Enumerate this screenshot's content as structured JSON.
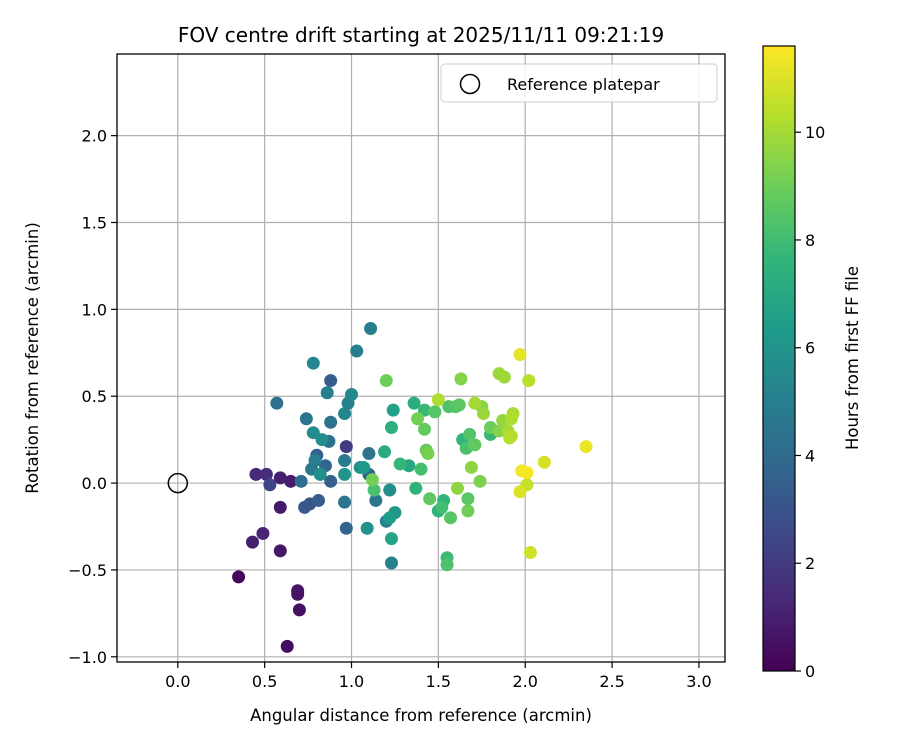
{
  "chart_data": {
    "type": "scatter",
    "title": "FOV centre drift starting at 2025/11/11 09:21:19",
    "xlabel": "Angular distance from reference (arcmin)",
    "ylabel": "Rotation from reference (arcmin)",
    "xlim": [
      -0.35,
      3.15
    ],
    "ylim": [
      -1.03,
      2.47
    ],
    "xticks": [
      0.0,
      0.5,
      1.0,
      1.5,
      2.0,
      2.5,
      3.0
    ],
    "xtick_labels": [
      "0.0",
      "0.5",
      "1.0",
      "1.5",
      "2.0",
      "2.5",
      "3.0"
    ],
    "yticks": [
      -1.0,
      -0.5,
      0.0,
      0.5,
      1.0,
      1.5,
      2.0
    ],
    "ytick_labels": [
      "−1.0",
      "−0.5",
      "0.0",
      "0.5",
      "1.0",
      "1.5",
      "2.0"
    ],
    "grid": true,
    "legend": {
      "location": "upper right",
      "entries": [
        {
          "label": "Reference platepar",
          "marker": "open-circle",
          "color": "#000000"
        }
      ]
    },
    "reference_point": {
      "x": 0.0,
      "y": 0.0
    },
    "colorbar": {
      "label": "Hours from first FF file",
      "colormap": "viridis",
      "range": [
        0,
        11.6
      ],
      "ticks": [
        0,
        2,
        4,
        6,
        8,
        10
      ],
      "tick_labels": [
        "0",
        "2",
        "4",
        "6",
        "8",
        "10"
      ],
      "stops": [
        "#440154",
        "#482878",
        "#3e4989",
        "#31688e",
        "#26828e",
        "#1f9e89",
        "#35b779",
        "#6ece58",
        "#b5de2b",
        "#fde725"
      ]
    },
    "points": [
      {
        "x": 0.35,
        "y": -0.54,
        "hours": 0.2
      },
      {
        "x": 0.63,
        "y": -0.94,
        "hours": 0.4
      },
      {
        "x": 0.7,
        "y": -0.73,
        "hours": 0.5
      },
      {
        "x": 0.69,
        "y": -0.62,
        "hours": 0.6
      },
      {
        "x": 0.69,
        "y": -0.64,
        "hours": 0.6
      },
      {
        "x": 0.59,
        "y": -0.39,
        "hours": 0.7
      },
      {
        "x": 0.59,
        "y": -0.14,
        "hours": 0.8
      },
      {
        "x": 0.65,
        "y": 0.01,
        "hours": 0.9
      },
      {
        "x": 0.59,
        "y": 0.03,
        "hours": 1.0
      },
      {
        "x": 0.43,
        "y": -0.34,
        "hours": 1.0
      },
      {
        "x": 0.49,
        "y": -0.29,
        "hours": 1.2
      },
      {
        "x": 0.45,
        "y": 0.05,
        "hours": 1.3
      },
      {
        "x": 0.51,
        "y": 0.05,
        "hours": 1.5
      },
      {
        "x": 0.97,
        "y": 0.21,
        "hours": 2.0
      },
      {
        "x": 0.53,
        "y": -0.01,
        "hours": 2.4
      },
      {
        "x": 0.76,
        "y": -0.12,
        "hours": 3.0
      },
      {
        "x": 0.73,
        "y": -0.14,
        "hours": 3.2
      },
      {
        "x": 0.81,
        "y": -0.1,
        "hours": 3.4
      },
      {
        "x": 0.88,
        "y": 0.59,
        "hours": 3.4
      },
      {
        "x": 0.8,
        "y": 0.16,
        "hours": 3.5
      },
      {
        "x": 0.88,
        "y": 0.01,
        "hours": 3.6
      },
      {
        "x": 0.97,
        "y": -0.26,
        "hours": 3.7
      },
      {
        "x": 0.85,
        "y": 0.1,
        "hours": 3.8
      },
      {
        "x": 1.1,
        "y": 0.05,
        "hours": 3.9
      },
      {
        "x": 0.71,
        "y": 0.01,
        "hours": 4.1
      },
      {
        "x": 0.87,
        "y": 0.24,
        "hours": 4.2
      },
      {
        "x": 0.57,
        "y": 0.46,
        "hours": 4.3
      },
      {
        "x": 0.88,
        "y": 0.35,
        "hours": 4.4
      },
      {
        "x": 1.1,
        "y": 0.17,
        "hours": 4.4
      },
      {
        "x": 0.74,
        "y": 0.37,
        "hours": 4.5
      },
      {
        "x": 0.96,
        "y": -0.11,
        "hours": 4.5
      },
      {
        "x": 1.14,
        "y": -0.1,
        "hours": 4.6
      },
      {
        "x": 0.77,
        "y": 0.08,
        "hours": 4.7
      },
      {
        "x": 0.96,
        "y": 0.13,
        "hours": 4.8
      },
      {
        "x": 0.79,
        "y": 0.13,
        "hours": 4.9
      },
      {
        "x": 1.03,
        "y": 0.76,
        "hours": 4.9
      },
      {
        "x": 0.86,
        "y": 0.52,
        "hours": 5.0
      },
      {
        "x": 1.11,
        "y": 0.89,
        "hours": 5.0
      },
      {
        "x": 0.98,
        "y": 0.46,
        "hours": 5.1
      },
      {
        "x": 1.23,
        "y": -0.46,
        "hours": 5.1
      },
      {
        "x": 1.2,
        "y": -0.22,
        "hours": 5.2
      },
      {
        "x": 0.96,
        "y": 0.4,
        "hours": 5.3
      },
      {
        "x": 0.78,
        "y": 0.69,
        "hours": 5.4
      },
      {
        "x": 1.0,
        "y": 0.51,
        "hours": 5.5
      },
      {
        "x": 1.05,
        "y": 0.09,
        "hours": 5.6
      },
      {
        "x": 0.78,
        "y": 0.29,
        "hours": 5.6
      },
      {
        "x": 1.22,
        "y": -0.04,
        "hours": 5.7
      },
      {
        "x": 0.83,
        "y": 0.25,
        "hours": 5.7
      },
      {
        "x": 0.82,
        "y": 0.05,
        "hours": 5.8
      },
      {
        "x": 1.09,
        "y": -0.26,
        "hours": 5.9
      },
      {
        "x": 0.96,
        "y": 0.05,
        "hours": 6.0
      },
      {
        "x": 1.25,
        "y": -0.17,
        "hours": 6.1
      },
      {
        "x": 1.07,
        "y": 0.09,
        "hours": 6.2
      },
      {
        "x": 1.22,
        "y": -0.2,
        "hours": 6.4
      },
      {
        "x": 1.24,
        "y": 0.42,
        "hours": 6.6
      },
      {
        "x": 1.23,
        "y": -0.32,
        "hours": 6.8
      },
      {
        "x": 1.33,
        "y": 0.1,
        "hours": 7.0
      },
      {
        "x": 1.19,
        "y": 0.18,
        "hours": 7.1
      },
      {
        "x": 1.36,
        "y": 0.46,
        "hours": 7.2
      },
      {
        "x": 1.23,
        "y": 0.32,
        "hours": 7.3
      },
      {
        "x": 1.5,
        "y": -0.16,
        "hours": 7.4
      },
      {
        "x": 1.37,
        "y": -0.03,
        "hours": 7.5
      },
      {
        "x": 1.64,
        "y": 0.25,
        "hours": 7.6
      },
      {
        "x": 1.53,
        "y": -0.1,
        "hours": 7.6
      },
      {
        "x": 1.28,
        "y": 0.11,
        "hours": 7.7
      },
      {
        "x": 1.42,
        "y": 0.42,
        "hours": 7.8
      },
      {
        "x": 1.8,
        "y": 0.28,
        "hours": 7.8
      },
      {
        "x": 1.55,
        "y": -0.43,
        "hours": 7.9
      },
      {
        "x": 1.52,
        "y": -0.14,
        "hours": 8.0
      },
      {
        "x": 1.4,
        "y": 0.08,
        "hours": 8.1
      },
      {
        "x": 1.13,
        "y": -0.04,
        "hours": 8.2
      },
      {
        "x": 1.66,
        "y": 0.2,
        "hours": 8.2
      },
      {
        "x": 1.55,
        "y": -0.47,
        "hours": 8.3
      },
      {
        "x": 1.56,
        "y": 0.44,
        "hours": 8.3
      },
      {
        "x": 1.6,
        "y": 0.44,
        "hours": 8.4
      },
      {
        "x": 1.68,
        "y": 0.28,
        "hours": 8.4
      },
      {
        "x": 1.48,
        "y": 0.41,
        "hours": 8.5
      },
      {
        "x": 1.57,
        "y": -0.2,
        "hours": 8.5
      },
      {
        "x": 1.62,
        "y": 0.45,
        "hours": 8.6
      },
      {
        "x": 1.67,
        "y": -0.09,
        "hours": 8.6
      },
      {
        "x": 1.45,
        "y": -0.09,
        "hours": 8.7
      },
      {
        "x": 1.71,
        "y": 0.22,
        "hours": 8.7
      },
      {
        "x": 1.43,
        "y": 0.19,
        "hours": 8.8
      },
      {
        "x": 1.42,
        "y": 0.31,
        "hours": 8.8
      },
      {
        "x": 1.8,
        "y": 0.32,
        "hours": 8.9
      },
      {
        "x": 1.67,
        "y": -0.16,
        "hours": 9.0
      },
      {
        "x": 1.2,
        "y": 0.59,
        "hours": 9.0
      },
      {
        "x": 1.12,
        "y": 0.02,
        "hours": 9.1
      },
      {
        "x": 1.38,
        "y": 0.37,
        "hours": 9.1
      },
      {
        "x": 1.44,
        "y": 0.17,
        "hours": 9.2
      },
      {
        "x": 1.74,
        "y": 0.01,
        "hours": 9.3
      },
      {
        "x": 1.63,
        "y": 0.6,
        "hours": 9.4
      },
      {
        "x": 1.85,
        "y": 0.3,
        "hours": 9.4
      },
      {
        "x": 1.75,
        "y": 0.44,
        "hours": 9.5
      },
      {
        "x": 1.61,
        "y": -0.03,
        "hours": 9.6
      },
      {
        "x": 1.69,
        "y": 0.09,
        "hours": 9.6
      },
      {
        "x": 1.87,
        "y": 0.36,
        "hours": 9.7
      },
      {
        "x": 1.85,
        "y": 0.63,
        "hours": 9.8
      },
      {
        "x": 1.76,
        "y": 0.4,
        "hours": 9.8
      },
      {
        "x": 1.88,
        "y": 0.61,
        "hours": 9.9
      },
      {
        "x": 1.71,
        "y": 0.46,
        "hours": 10.0
      },
      {
        "x": 1.9,
        "y": 0.3,
        "hours": 10.0
      },
      {
        "x": 1.93,
        "y": 0.4,
        "hours": 10.1
      },
      {
        "x": 1.92,
        "y": 0.37,
        "hours": 10.2
      },
      {
        "x": 1.5,
        "y": 0.48,
        "hours": 10.2
      },
      {
        "x": 1.91,
        "y": 0.26,
        "hours": 10.3
      },
      {
        "x": 1.92,
        "y": 0.27,
        "hours": 10.3
      },
      {
        "x": 2.02,
        "y": 0.59,
        "hours": 10.4
      },
      {
        "x": 2.01,
        "y": -0.01,
        "hours": 10.6
      },
      {
        "x": 2.03,
        "y": -0.4,
        "hours": 10.8
      },
      {
        "x": 2.11,
        "y": 0.12,
        "hours": 10.9
      },
      {
        "x": 1.97,
        "y": -0.05,
        "hours": 11.0
      },
      {
        "x": 1.97,
        "y": 0.74,
        "hours": 11.1
      },
      {
        "x": 2.35,
        "y": 0.21,
        "hours": 11.3
      },
      {
        "x": 1.98,
        "y": 0.07,
        "hours": 11.4
      },
      {
        "x": 2.01,
        "y": 0.06,
        "hours": 11.5
      }
    ]
  }
}
